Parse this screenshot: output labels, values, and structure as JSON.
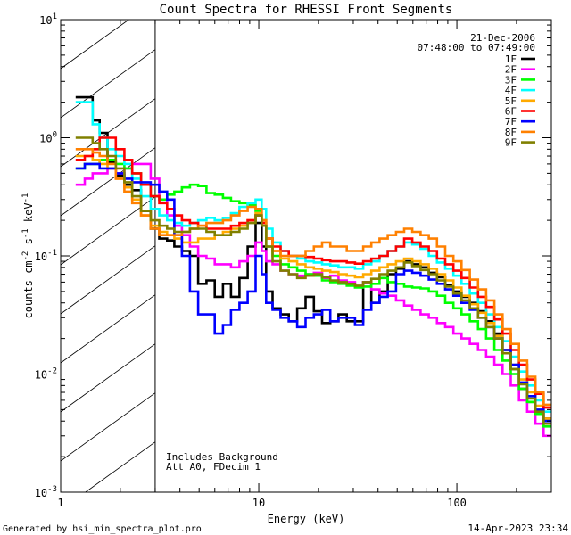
{
  "chart_data": {
    "type": "line",
    "title": "Count Spectra for RHESSI Front Segments",
    "xlabel": "Energy (keV)",
    "ylabel": "counts cm^-2 s^-1 keV^-1",
    "xscale": "log",
    "yscale": "log",
    "xlim": [
      1,
      300
    ],
    "ylim": [
      0.001,
      10
    ],
    "x_ticks": [
      {
        "value": 1,
        "label": "1"
      },
      {
        "value": 10,
        "label": "10"
      },
      {
        "value": 100,
        "label": "100"
      }
    ],
    "y_ticks": [
      {
        "value": 0.001,
        "base": "10",
        "exp": "-3"
      },
      {
        "value": 0.01,
        "base": "10",
        "exp": "-2"
      },
      {
        "value": 0.1,
        "base": "10",
        "exp": "-1"
      },
      {
        "value": 1,
        "base": "10",
        "exp": "0"
      },
      {
        "value": 10,
        "base": "10",
        "exp": "1"
      }
    ],
    "hatched_region": {
      "x_from": 1,
      "x_to": 3
    },
    "annotations": {
      "date": "21-Dec-2006",
      "time_range": "07:48:00 to 07:49:00",
      "background_note": "Includes Background",
      "attenuator_note": "Att A0, FDecim 1"
    },
    "series": [
      {
        "name": "1F",
        "color": "#000000",
        "x": [
          1.25,
          1.4,
          1.5,
          1.65,
          1.8,
          2.0,
          2.2,
          2.4,
          2.7,
          3.0,
          3.3,
          3.6,
          3.9,
          4.3,
          4.7,
          5.2,
          5.7,
          6.3,
          6.9,
          7.6,
          8.4,
          9.2,
          10.1,
          10.6,
          11.2,
          12.3,
          13.5,
          14.9,
          16.4,
          18.1,
          19.9,
          21.9,
          24.1,
          26.5,
          29.2,
          32.1,
          35.3,
          38.8,
          42.7,
          47.0,
          51.7,
          56.8,
          62.5,
          68.8,
          75.7,
          83.2,
          91.6,
          100.7,
          110.8,
          121.9,
          134.1,
          147.5,
          162.2,
          178.4,
          196.3,
          215.9,
          237.5,
          261.3,
          287.4
        ],
        "y": [
          2.2,
          2.2,
          1.4,
          1.1,
          0.62,
          0.48,
          0.4,
          0.36,
          0.24,
          0.17,
          0.14,
          0.135,
          0.12,
          0.11,
          0.1,
          0.058,
          0.062,
          0.045,
          0.058,
          0.045,
          0.065,
          0.12,
          0.19,
          0.12,
          0.05,
          0.036,
          0.032,
          0.028,
          0.036,
          0.045,
          0.034,
          0.027,
          0.028,
          0.032,
          0.028,
          0.028,
          0.06,
          0.04,
          0.05,
          0.07,
          0.078,
          0.09,
          0.085,
          0.08,
          0.072,
          0.066,
          0.057,
          0.05,
          0.045,
          0.04,
          0.034,
          0.028,
          0.022,
          0.016,
          0.011,
          0.0075,
          0.0058,
          0.0048,
          0.0042
        ]
      },
      {
        "name": "2F",
        "color": "#ff00ff",
        "x": [
          1.25,
          1.4,
          1.5,
          1.65,
          1.8,
          2.0,
          2.2,
          2.4,
          2.7,
          3.0,
          3.3,
          3.6,
          3.9,
          4.3,
          4.7,
          5.2,
          5.7,
          6.3,
          6.9,
          7.6,
          8.4,
          9.2,
          10.1,
          10.6,
          11.2,
          12.3,
          13.5,
          14.9,
          16.4,
          18.1,
          19.9,
          21.9,
          24.1,
          26.5,
          29.2,
          32.1,
          35.3,
          38.8,
          42.7,
          47.0,
          51.7,
          56.8,
          62.5,
          68.8,
          75.7,
          83.2,
          91.6,
          100.7,
          110.8,
          121.9,
          134.1,
          147.5,
          162.2,
          178.4,
          196.3,
          215.9,
          237.5,
          261.3,
          287.4
        ],
        "y": [
          0.4,
          0.45,
          0.5,
          0.5,
          0.55,
          0.5,
          0.55,
          0.6,
          0.6,
          0.45,
          0.3,
          0.22,
          0.18,
          0.15,
          0.12,
          0.1,
          0.095,
          0.085,
          0.085,
          0.08,
          0.09,
          0.1,
          0.13,
          0.11,
          0.09,
          0.085,
          0.075,
          0.07,
          0.068,
          0.07,
          0.072,
          0.065,
          0.068,
          0.062,
          0.06,
          0.055,
          0.06,
          0.052,
          0.048,
          0.046,
          0.042,
          0.038,
          0.035,
          0.032,
          0.03,
          0.027,
          0.025,
          0.022,
          0.02,
          0.018,
          0.016,
          0.014,
          0.012,
          0.01,
          0.008,
          0.006,
          0.0048,
          0.0038,
          0.003
        ]
      },
      {
        "name": "3F",
        "color": "#00ff00",
        "x": [
          1.25,
          1.4,
          1.5,
          1.65,
          1.8,
          2.0,
          2.2,
          2.4,
          2.7,
          3.0,
          3.3,
          3.6,
          3.9,
          4.3,
          4.7,
          5.2,
          5.7,
          6.3,
          6.9,
          7.6,
          8.4,
          9.2,
          10.1,
          10.6,
          11.2,
          12.3,
          13.5,
          14.9,
          16.4,
          18.1,
          19.9,
          21.9,
          24.1,
          26.5,
          29.2,
          32.1,
          35.3,
          38.8,
          42.7,
          47.0,
          51.7,
          56.8,
          62.5,
          68.8,
          75.7,
          83.2,
          91.6,
          100.7,
          110.8,
          121.9,
          134.1,
          147.5,
          162.2,
          178.4,
          196.3,
          215.9,
          237.5,
          261.3,
          287.4
        ],
        "y": [
          0.55,
          0.6,
          0.6,
          0.65,
          0.65,
          0.6,
          0.55,
          0.5,
          0.4,
          0.32,
          0.3,
          0.33,
          0.35,
          0.38,
          0.4,
          0.39,
          0.34,
          0.33,
          0.31,
          0.29,
          0.28,
          0.27,
          0.24,
          0.18,
          0.12,
          0.1,
          0.085,
          0.08,
          0.075,
          0.07,
          0.068,
          0.062,
          0.06,
          0.058,
          0.056,
          0.054,
          0.055,
          0.058,
          0.065,
          0.06,
          0.058,
          0.055,
          0.054,
          0.053,
          0.05,
          0.046,
          0.04,
          0.036,
          0.032,
          0.028,
          0.024,
          0.02,
          0.016,
          0.013,
          0.01,
          0.0075,
          0.0058,
          0.0046,
          0.0036
        ]
      },
      {
        "name": "4F",
        "color": "#00ffff",
        "x": [
          1.25,
          1.4,
          1.5,
          1.65,
          1.8,
          2.0,
          2.2,
          2.4,
          2.7,
          3.0,
          3.3,
          3.6,
          3.9,
          4.3,
          4.7,
          5.2,
          5.7,
          6.3,
          6.9,
          7.6,
          8.4,
          9.2,
          10.1,
          10.6,
          11.2,
          12.3,
          13.5,
          14.9,
          16.4,
          18.1,
          19.9,
          21.9,
          24.1,
          26.5,
          29.2,
          32.1,
          35.3,
          38.8,
          42.7,
          47.0,
          51.7,
          56.8,
          62.5,
          68.8,
          75.7,
          83.2,
          91.6,
          100.7,
          110.8,
          121.9,
          134.1,
          147.5,
          162.2,
          178.4,
          196.3,
          215.9,
          237.5,
          261.3,
          287.4
        ],
        "y": [
          2.0,
          2.0,
          1.3,
          1.0,
          0.8,
          0.7,
          0.6,
          0.45,
          0.32,
          0.25,
          0.22,
          0.2,
          0.19,
          0.18,
          0.19,
          0.2,
          0.21,
          0.2,
          0.21,
          0.23,
          0.26,
          0.28,
          0.3,
          0.25,
          0.17,
          0.13,
          0.11,
          0.1,
          0.095,
          0.09,
          0.088,
          0.085,
          0.083,
          0.08,
          0.08,
          0.078,
          0.085,
          0.09,
          0.1,
          0.11,
          0.12,
          0.13,
          0.125,
          0.115,
          0.1,
          0.088,
          0.078,
          0.068,
          0.058,
          0.048,
          0.04,
          0.032,
          0.025,
          0.019,
          0.014,
          0.0105,
          0.008,
          0.006,
          0.0048
        ]
      },
      {
        "name": "5F",
        "color": "#ffaa00",
        "x": [
          1.25,
          1.4,
          1.5,
          1.65,
          1.8,
          2.0,
          2.2,
          2.4,
          2.7,
          3.0,
          3.3,
          3.6,
          3.9,
          4.3,
          4.7,
          5.2,
          5.7,
          6.3,
          6.9,
          7.6,
          8.4,
          9.2,
          10.1,
          10.6,
          11.2,
          12.3,
          13.5,
          14.9,
          16.4,
          18.1,
          19.9,
          21.9,
          24.1,
          26.5,
          29.2,
          32.1,
          35.3,
          38.8,
          42.7,
          47.0,
          51.7,
          56.8,
          62.5,
          68.8,
          75.7,
          83.2,
          91.6,
          100.7,
          110.8,
          121.9,
          134.1,
          147.5,
          162.2,
          178.4,
          196.3,
          215.9,
          237.5,
          261.3,
          287.4
        ],
        "y": [
          0.7,
          0.7,
          0.65,
          0.6,
          0.55,
          0.45,
          0.38,
          0.3,
          0.22,
          0.18,
          0.16,
          0.15,
          0.14,
          0.13,
          0.13,
          0.14,
          0.14,
          0.15,
          0.16,
          0.17,
          0.18,
          0.2,
          0.23,
          0.2,
          0.14,
          0.11,
          0.095,
          0.09,
          0.085,
          0.08,
          0.078,
          0.075,
          0.073,
          0.07,
          0.068,
          0.066,
          0.07,
          0.075,
          0.08,
          0.085,
          0.09,
          0.095,
          0.09,
          0.085,
          0.078,
          0.07,
          0.062,
          0.054,
          0.046,
          0.039,
          0.033,
          0.027,
          0.021,
          0.016,
          0.012,
          0.009,
          0.007,
          0.0054,
          0.0042
        ]
      },
      {
        "name": "6F",
        "color": "#ff0000",
        "x": [
          1.25,
          1.4,
          1.5,
          1.65,
          1.8,
          2.0,
          2.2,
          2.4,
          2.7,
          3.0,
          3.3,
          3.6,
          3.9,
          4.3,
          4.7,
          5.2,
          5.7,
          6.3,
          6.9,
          7.6,
          8.4,
          9.2,
          10.1,
          10.6,
          11.2,
          12.3,
          13.5,
          14.9,
          16.4,
          18.1,
          19.9,
          21.9,
          24.1,
          26.5,
          29.2,
          32.1,
          35.3,
          38.8,
          42.7,
          47.0,
          51.7,
          56.8,
          62.5,
          68.8,
          75.7,
          83.2,
          91.6,
          100.7,
          110.8,
          121.9,
          134.1,
          147.5,
          162.2,
          178.4,
          196.3,
          215.9,
          237.5,
          261.3,
          287.4
        ],
        "y": [
          0.65,
          0.7,
          0.8,
          1.0,
          1.0,
          0.8,
          0.65,
          0.5,
          0.4,
          0.32,
          0.28,
          0.25,
          0.22,
          0.2,
          0.19,
          0.18,
          0.17,
          0.17,
          0.17,
          0.18,
          0.19,
          0.2,
          0.22,
          0.19,
          0.14,
          0.12,
          0.11,
          0.1,
          0.1,
          0.098,
          0.095,
          0.092,
          0.09,
          0.09,
          0.088,
          0.086,
          0.09,
          0.095,
          0.1,
          0.11,
          0.12,
          0.14,
          0.13,
          0.12,
          0.11,
          0.095,
          0.085,
          0.075,
          0.065,
          0.054,
          0.045,
          0.037,
          0.029,
          0.022,
          0.016,
          0.012,
          0.009,
          0.0068,
          0.0052
        ]
      },
      {
        "name": "7F",
        "color": "#0000ff",
        "x": [
          1.25,
          1.4,
          1.5,
          1.65,
          1.8,
          2.0,
          2.2,
          2.4,
          2.7,
          3.0,
          3.3,
          3.6,
          3.9,
          4.3,
          4.7,
          5.2,
          5.7,
          6.3,
          6.9,
          7.6,
          8.4,
          9.2,
          10.1,
          10.6,
          11.2,
          12.3,
          13.5,
          14.9,
          16.4,
          18.1,
          19.9,
          21.9,
          24.1,
          26.5,
          29.2,
          32.1,
          35.3,
          38.8,
          42.7,
          47.0,
          51.7,
          56.8,
          62.5,
          68.8,
          75.7,
          83.2,
          91.6,
          100.7,
          110.8,
          121.9,
          134.1,
          147.5,
          162.2,
          178.4,
          196.3,
          215.9,
          237.5,
          261.3,
          287.4
        ],
        "y": [
          0.55,
          0.6,
          0.6,
          0.55,
          0.55,
          0.5,
          0.45,
          0.42,
          0.42,
          0.4,
          0.35,
          0.3,
          0.15,
          0.1,
          0.05,
          0.032,
          0.032,
          0.022,
          0.026,
          0.035,
          0.04,
          0.05,
          0.1,
          0.07,
          0.04,
          0.035,
          0.03,
          0.028,
          0.025,
          0.03,
          0.032,
          0.035,
          0.028,
          0.03,
          0.03,
          0.026,
          0.035,
          0.04,
          0.045,
          0.05,
          0.07,
          0.075,
          0.072,
          0.068,
          0.063,
          0.058,
          0.052,
          0.046,
          0.04,
          0.035,
          0.03,
          0.025,
          0.02,
          0.016,
          0.012,
          0.0085,
          0.0065,
          0.005,
          0.004
        ]
      },
      {
        "name": "8F",
        "color": "#ff8000",
        "x": [
          1.25,
          1.4,
          1.5,
          1.65,
          1.8,
          2.0,
          2.2,
          2.4,
          2.7,
          3.0,
          3.3,
          3.6,
          3.9,
          4.3,
          4.7,
          5.2,
          5.7,
          6.3,
          6.9,
          7.6,
          8.4,
          9.2,
          10.1,
          10.6,
          11.2,
          12.3,
          13.5,
          14.9,
          16.4,
          18.1,
          19.9,
          21.9,
          24.1,
          26.5,
          29.2,
          32.1,
          35.3,
          38.8,
          42.7,
          47.0,
          51.7,
          56.8,
          62.5,
          68.8,
          75.7,
          83.2,
          91.6,
          100.7,
          110.8,
          121.9,
          134.1,
          147.5,
          162.2,
          178.4,
          196.3,
          215.9,
          237.5,
          261.3,
          287.4
        ],
        "y": [
          0.8,
          0.8,
          0.75,
          0.7,
          0.6,
          0.45,
          0.35,
          0.28,
          0.22,
          0.17,
          0.15,
          0.15,
          0.15,
          0.16,
          0.17,
          0.18,
          0.19,
          0.19,
          0.2,
          0.22,
          0.24,
          0.26,
          0.25,
          0.2,
          0.14,
          0.11,
          0.1,
          0.1,
          0.1,
          0.11,
          0.12,
          0.13,
          0.12,
          0.12,
          0.11,
          0.11,
          0.12,
          0.13,
          0.14,
          0.15,
          0.16,
          0.17,
          0.16,
          0.15,
          0.14,
          0.12,
          0.1,
          0.09,
          0.076,
          0.063,
          0.052,
          0.042,
          0.032,
          0.024,
          0.018,
          0.013,
          0.0095,
          0.007,
          0.0055
        ]
      },
      {
        "name": "9F",
        "color": "#808000",
        "x": [
          1.25,
          1.4,
          1.5,
          1.65,
          1.8,
          2.0,
          2.2,
          2.4,
          2.7,
          3.0,
          3.3,
          3.6,
          3.9,
          4.3,
          4.7,
          5.2,
          5.7,
          6.3,
          6.9,
          7.6,
          8.4,
          9.2,
          10.1,
          10.6,
          11.2,
          12.3,
          13.5,
          14.9,
          16.4,
          18.1,
          19.9,
          21.9,
          24.1,
          26.5,
          29.2,
          32.1,
          35.3,
          38.8,
          42.7,
          47.0,
          51.7,
          56.8,
          62.5,
          68.8,
          75.7,
          83.2,
          91.6,
          100.7,
          110.8,
          121.9,
          134.1,
          147.5,
          162.2,
          178.4,
          196.3,
          215.9,
          237.5,
          261.3,
          287.4
        ],
        "y": [
          1.0,
          1.0,
          0.9,
          0.8,
          0.7,
          0.55,
          0.42,
          0.32,
          0.24,
          0.2,
          0.18,
          0.17,
          0.16,
          0.16,
          0.17,
          0.17,
          0.16,
          0.15,
          0.15,
          0.16,
          0.17,
          0.19,
          0.22,
          0.18,
          0.12,
          0.09,
          0.075,
          0.07,
          0.065,
          0.068,
          0.07,
          0.066,
          0.062,
          0.06,
          0.058,
          0.056,
          0.06,
          0.064,
          0.07,
          0.075,
          0.08,
          0.088,
          0.082,
          0.076,
          0.07,
          0.062,
          0.055,
          0.048,
          0.042,
          0.036,
          0.03,
          0.025,
          0.02,
          0.015,
          0.011,
          0.0082,
          0.0062,
          0.0048,
          0.0038
        ]
      }
    ]
  },
  "footer": {
    "generated_by": "Generated by hsi_min_spectra_plot.pro",
    "timestamp": "14-Apr-2023 23:34"
  }
}
